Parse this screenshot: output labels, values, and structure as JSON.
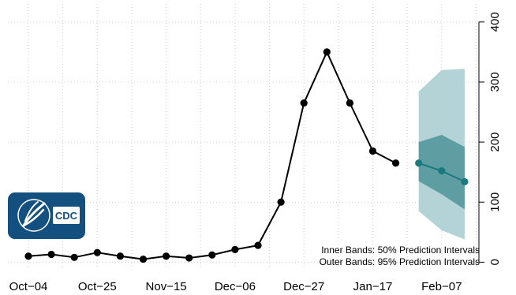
{
  "chart_data": {
    "type": "line",
    "title": "",
    "xlabel": "",
    "ylabel": "",
    "x_tick_labels": [
      "Oct−04",
      "Oct−25",
      "Nov−15",
      "Dec−06",
      "Dec−27",
      "Jan−17",
      "Feb−07"
    ],
    "y_ticks": [
      0,
      100,
      200,
      300,
      400
    ],
    "ylim": [
      -10,
      430
    ],
    "grid": true,
    "series": [
      {
        "role": "observed",
        "color": "#000000",
        "x_index": [
          0,
          1,
          2,
          3,
          4,
          5,
          6,
          7,
          8,
          9,
          10,
          11,
          12,
          13,
          14,
          15,
          16
        ],
        "values": [
          10,
          13,
          8,
          16,
          10,
          5,
          10,
          7,
          12,
          21,
          28,
          100,
          265,
          350,
          265,
          185,
          165
        ]
      },
      {
        "role": "forecast",
        "color": "#1a7a7e",
        "x_index": [
          17,
          18,
          19
        ],
        "values": [
          165,
          152,
          134
        ],
        "band_50": {
          "lower": [
            135,
            113,
            88
          ],
          "upper": [
            200,
            212,
            192
          ]
        },
        "band_95": {
          "lower": [
            85,
            53,
            38
          ],
          "upper": [
            284,
            320,
            322
          ]
        }
      }
    ],
    "legend_lines": [
      "Inner Bands: 50% Prediction Intervals",
      "Outer Bands: 95% Prediction Intervals"
    ],
    "legend_placement": "bottom-right",
    "colors": {
      "band_95": "#b3d3d6",
      "band_50": "#5e9ea3",
      "grid": "#cccccc"
    }
  },
  "logo": {
    "text": "CDC",
    "icon": "hhs-eagle-icon",
    "color": "#14507f"
  }
}
